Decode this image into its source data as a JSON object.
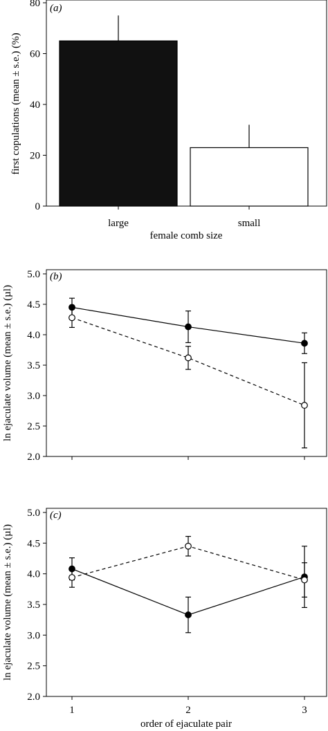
{
  "chart_data": [
    {
      "type": "bar",
      "panel": "(a)",
      "categories": [
        "large",
        "small"
      ],
      "values": [
        65,
        23
      ],
      "errors": [
        10,
        9
      ],
      "bar_colors": [
        "#111111",
        "#ffffff"
      ],
      "xlabel": "female comb size",
      "ylabel": "first copulations (mean ± s.e.) (%)",
      "ylim": [
        0,
        80
      ],
      "yticks": [
        "0",
        "20",
        "40",
        "60",
        "80"
      ]
    },
    {
      "type": "line",
      "panel": "(b)",
      "x": [
        1,
        2,
        3
      ],
      "series": [
        {
          "marker": "filled",
          "line": "solid",
          "values": [
            4.45,
            4.13,
            3.86
          ],
          "errors": [
            0.15,
            0.26,
            0.17
          ]
        },
        {
          "marker": "open",
          "line": "dashed",
          "values": [
            4.28,
            3.62,
            2.84
          ],
          "errors": [
            0.16,
            0.19,
            0.7
          ]
        }
      ],
      "xlabel": "",
      "ylabel": "ln ejaculate volume (mean ± s.e.) (µl)",
      "ylim": [
        2.0,
        5.0
      ],
      "yticks": [
        "2.0",
        "2.5",
        "3.0",
        "3.5",
        "4.0",
        "4.5",
        "5.0"
      ]
    },
    {
      "type": "line",
      "panel": "(c)",
      "x": [
        1,
        2,
        3
      ],
      "series": [
        {
          "marker": "filled",
          "line": "solid",
          "values": [
            4.08,
            3.33,
            3.95
          ],
          "errors": [
            0.18,
            0.29,
            0.5
          ]
        },
        {
          "marker": "open",
          "line": "dashed",
          "values": [
            3.94,
            4.45,
            3.9
          ],
          "errors": [
            0.16,
            0.16,
            0.28
          ]
        }
      ],
      "xlabel": "order of ejaculate pair",
      "ylabel": "ln ejaculate volume (mean ± s.e.) (µl)",
      "ylim": [
        2.0,
        5.0
      ],
      "yticks": [
        "2.0",
        "2.5",
        "3.0",
        "3.5",
        "4.0",
        "4.5",
        "5.0"
      ],
      "xticks": [
        "1",
        "2",
        "3"
      ]
    }
  ]
}
